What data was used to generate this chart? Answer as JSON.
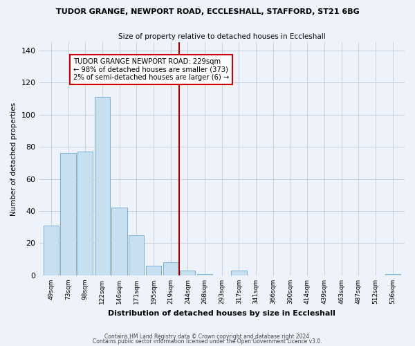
{
  "title": "TUDOR GRANGE, NEWPORT ROAD, ECCLESHALL, STAFFORD, ST21 6BG",
  "subtitle": "Size of property relative to detached houses in Eccleshall",
  "xlabel": "Distribution of detached houses by size in Eccleshall",
  "ylabel": "Number of detached properties",
  "bar_color": "#c8dff0",
  "bar_edge_color": "#7ab0d4",
  "background_color": "#eef2fb",
  "grid_color": "#c8cfe0",
  "tick_labels": [
    "49sqm",
    "73sqm",
    "98sqm",
    "122sqm",
    "146sqm",
    "171sqm",
    "195sqm",
    "219sqm",
    "244sqm",
    "268sqm",
    "293sqm",
    "317sqm",
    "341sqm",
    "366sqm",
    "390sqm",
    "414sqm",
    "439sqm",
    "463sqm",
    "487sqm",
    "512sqm",
    "536sqm"
  ],
  "bar_heights": [
    31,
    76,
    77,
    111,
    42,
    25,
    6,
    8,
    3,
    1,
    0,
    3,
    0,
    0,
    0,
    0,
    0,
    0,
    0,
    0,
    1
  ],
  "ylim": [
    0,
    145
  ],
  "yticks": [
    0,
    20,
    40,
    60,
    80,
    100,
    120,
    140
  ],
  "vline_x": 7.5,
  "vline_color": "#aa0000",
  "annotation_text": "TUDOR GRANGE NEWPORT ROAD: 229sqm\n← 98% of detached houses are smaller (373)\n2% of semi-detached houses are larger (6) →",
  "annotation_box_facecolor": "#ffffff",
  "annotation_box_edgecolor": "#cc0000",
  "footnote1": "Contains HM Land Registry data © Crown copyright and database right 2024.",
  "footnote2": "Contains public sector information licensed under the Open Government Licence v3.0."
}
